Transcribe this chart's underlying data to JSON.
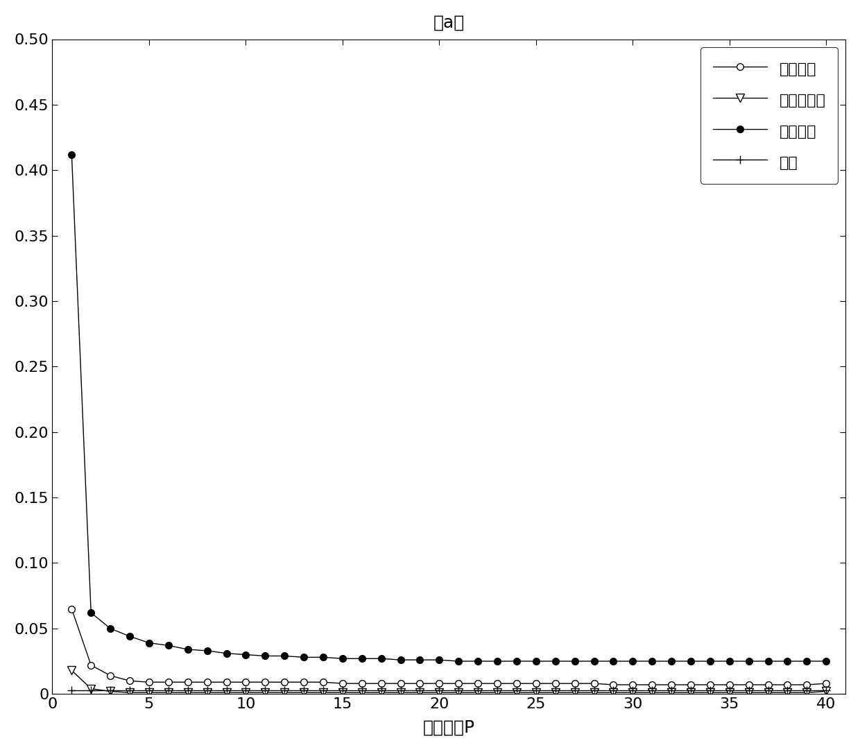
{
  "title": "（a）",
  "xlabel": "模型阶数P",
  "ylabel": "",
  "xlim": [
    0,
    41
  ],
  "ylim": [
    0,
    0.5
  ],
  "yticks": [
    0,
    0.05,
    0.1,
    0.15,
    0.2,
    0.25,
    0.3,
    0.35,
    0.4,
    0.45,
    0.5
  ],
  "xticks": [
    0,
    5,
    10,
    15,
    20,
    25,
    30,
    35,
    40
  ],
  "background_color": "#ffffff",
  "legend_labels": [
    "内圈故障",
    "滚动体故障",
    "外圈故障",
    "正常"
  ],
  "series": {
    "inner_race": {
      "x": [
        1,
        2,
        3,
        4,
        5,
        6,
        7,
        8,
        9,
        10,
        11,
        12,
        13,
        14,
        15,
        16,
        17,
        18,
        19,
        20,
        21,
        22,
        23,
        24,
        25,
        26,
        27,
        28,
        29,
        30,
        31,
        32,
        33,
        34,
        35,
        36,
        37,
        38,
        39,
        40
      ],
      "y": [
        0.065,
        0.022,
        0.014,
        0.01,
        0.009,
        0.009,
        0.009,
        0.009,
        0.009,
        0.009,
        0.009,
        0.009,
        0.009,
        0.009,
        0.008,
        0.008,
        0.008,
        0.008,
        0.008,
        0.008,
        0.008,
        0.008,
        0.008,
        0.008,
        0.008,
        0.008,
        0.008,
        0.008,
        0.007,
        0.007,
        0.007,
        0.007,
        0.007,
        0.007,
        0.007,
        0.007,
        0.007,
        0.007,
        0.007,
        0.008
      ],
      "color": "#000000",
      "marker": "o",
      "markersize": 7,
      "markerfacecolor": "white",
      "linewidth": 1.0
    },
    "rolling_element": {
      "x": [
        1,
        2,
        3,
        4,
        5,
        6,
        7,
        8,
        9,
        10,
        11,
        12,
        13,
        14,
        15,
        16,
        17,
        18,
        19,
        20,
        21,
        22,
        23,
        24,
        25,
        26,
        27,
        28,
        29,
        30,
        31,
        32,
        33,
        34,
        35,
        36,
        37,
        38,
        39,
        40
      ],
      "y": [
        0.018,
        0.004,
        0.002,
        0.001,
        0.001,
        0.001,
        0.001,
        0.001,
        0.001,
        0.001,
        0.001,
        0.001,
        0.001,
        0.001,
        0.001,
        0.001,
        0.001,
        0.001,
        0.001,
        0.001,
        0.001,
        0.001,
        0.001,
        0.001,
        0.001,
        0.001,
        0.001,
        0.001,
        0.001,
        0.001,
        0.001,
        0.001,
        0.001,
        0.001,
        0.001,
        0.001,
        0.001,
        0.001,
        0.001,
        0.002
      ],
      "color": "#000000",
      "marker": "v",
      "markersize": 8,
      "markerfacecolor": "white",
      "linewidth": 1.0
    },
    "outer_race": {
      "x": [
        1,
        2,
        3,
        4,
        5,
        6,
        7,
        8,
        9,
        10,
        11,
        12,
        13,
        14,
        15,
        16,
        17,
        18,
        19,
        20,
        21,
        22,
        23,
        24,
        25,
        26,
        27,
        28,
        29,
        30,
        31,
        32,
        33,
        34,
        35,
        36,
        37,
        38,
        39,
        40
      ],
      "y": [
        0.412,
        0.062,
        0.05,
        0.044,
        0.039,
        0.037,
        0.034,
        0.033,
        0.031,
        0.03,
        0.029,
        0.029,
        0.028,
        0.028,
        0.027,
        0.027,
        0.027,
        0.026,
        0.026,
        0.026,
        0.025,
        0.025,
        0.025,
        0.025,
        0.025,
        0.025,
        0.025,
        0.025,
        0.025,
        0.025,
        0.025,
        0.025,
        0.025,
        0.025,
        0.025,
        0.025,
        0.025,
        0.025,
        0.025,
        0.025
      ],
      "color": "#000000",
      "marker": "o",
      "markersize": 7,
      "markerfacecolor": "#000000",
      "linewidth": 1.0
    },
    "normal": {
      "x": [
        1,
        2,
        3,
        4,
        5,
        6,
        7,
        8,
        9,
        10,
        11,
        12,
        13,
        14,
        15,
        16,
        17,
        18,
        19,
        20,
        21,
        22,
        23,
        24,
        25,
        26,
        27,
        28,
        29,
        30,
        31,
        32,
        33,
        34,
        35,
        36,
        37,
        38,
        39,
        40
      ],
      "y": [
        0.003,
        0.003,
        0.003,
        0.003,
        0.003,
        0.003,
        0.003,
        0.003,
        0.003,
        0.003,
        0.003,
        0.003,
        0.003,
        0.003,
        0.003,
        0.003,
        0.003,
        0.003,
        0.003,
        0.003,
        0.003,
        0.003,
        0.003,
        0.003,
        0.003,
        0.003,
        0.003,
        0.003,
        0.003,
        0.003,
        0.003,
        0.003,
        0.003,
        0.003,
        0.003,
        0.003,
        0.003,
        0.003,
        0.003,
        0.003
      ],
      "color": "#000000",
      "marker": "+",
      "markersize": 9,
      "markerfacecolor": "white",
      "linewidth": 1.0
    }
  }
}
